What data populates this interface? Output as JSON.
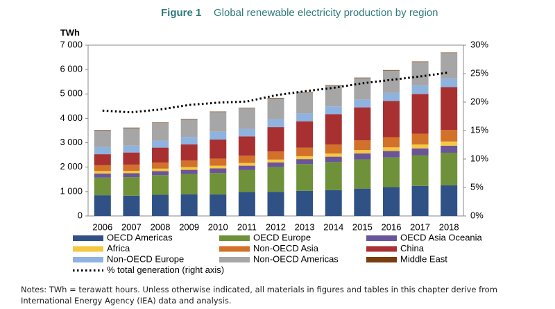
{
  "chart_data": {
    "type": "bar",
    "figure_label": "Figure 1",
    "title": "Global renewable electricity production by region",
    "ylabel": "TWh",
    "stacked": true,
    "categories": [
      "2006",
      "2007",
      "2008",
      "2009",
      "2010",
      "2011",
      "2012",
      "2013",
      "2014",
      "2015",
      "2016",
      "2017",
      "2018"
    ],
    "series": [
      {
        "name": "OECD Americas",
        "color": "#2f5185",
        "values": [
          850,
          830,
          870,
          890,
          880,
          980,
          990,
          1030,
          1060,
          1120,
          1180,
          1230,
          1260
        ]
      },
      {
        "name": "OECD Europe",
        "color": "#6f9139",
        "values": [
          720,
          760,
          800,
          830,
          880,
          900,
          1010,
          1100,
          1150,
          1200,
          1220,
          1260,
          1330
        ]
      },
      {
        "name": "OECD Asia Oceania",
        "color": "#6a559a",
        "values": [
          170,
          160,
          170,
          170,
          190,
          180,
          190,
          200,
          220,
          240,
          260,
          280,
          290
        ]
      },
      {
        "name": "Africa",
        "color": "#f5c842",
        "values": [
          100,
          100,
          100,
          110,
          110,
          110,
          120,
          120,
          130,
          140,
          150,
          160,
          170
        ]
      },
      {
        "name": "Non-OECD Asia",
        "color": "#d2712a",
        "values": [
          240,
          250,
          250,
          270,
          290,
          300,
          330,
          350,
          370,
          400,
          420,
          440,
          470
        ]
      },
      {
        "name": "China",
        "color": "#a83030",
        "values": [
          450,
          500,
          610,
          660,
          780,
          790,
          1000,
          1080,
          1240,
          1350,
          1480,
          1630,
          1760
        ]
      },
      {
        "name": "Non-OECD Europe",
        "color": "#8fb3e0",
        "values": [
          290,
          280,
          290,
          310,
          320,
          300,
          320,
          320,
          320,
          320,
          330,
          340,
          350
        ]
      },
      {
        "name": "Non-OECD Americas",
        "color": "#a6a6a6",
        "values": [
          680,
          720,
          720,
          720,
          810,
          850,
          860,
          860,
          850,
          880,
          920,
          970,
          1050
        ]
      },
      {
        "name": "Middle East",
        "color": "#7b3d0e",
        "values": [
          20,
          20,
          20,
          20,
          20,
          20,
          20,
          20,
          20,
          20,
          20,
          20,
          20
        ]
      },
      {
        "name": "% total generation  (right axis)",
        "type": "line",
        "axis": "y2",
        "color": "#000000",
        "values": [
          18.5,
          18.2,
          18.7,
          19.5,
          19.9,
          20.1,
          21.2,
          21.9,
          22.5,
          23.3,
          23.9,
          24.5,
          25.2
        ]
      }
    ],
    "ylim": [
      0,
      7000
    ],
    "yticks": [
      0,
      {
        "value": 1000,
        "label": "1 000"
      },
      {
        "value": 2000,
        "label": "2 000"
      },
      {
        "value": 3000,
        "label": "3 000"
      },
      {
        "value": 4000,
        "label": "4 000"
      },
      {
        "value": 5000,
        "label": "5 000"
      },
      {
        "value": 6000,
        "label": "6 000"
      },
      {
        "value": 7000,
        "label": "7 000"
      }
    ],
    "y2lim": [
      0,
      30
    ],
    "y2ticks": [
      {
        "value": 0,
        "label": "0%"
      },
      {
        "value": 5,
        "label": "5%"
      },
      {
        "value": 10,
        "label": "10%"
      },
      {
        "value": 15,
        "label": "15%"
      },
      {
        "value": 20,
        "label": "20%"
      },
      {
        "value": 25,
        "label": "25%"
      },
      {
        "value": 30,
        "label": "30%"
      }
    ],
    "grid": false,
    "notes": "Notes: TWh = terawatt hours. Unless otherwise indicated, all materials in figures and tables in this chapter derive from International Energy Agency (IEA) data and analysis."
  }
}
